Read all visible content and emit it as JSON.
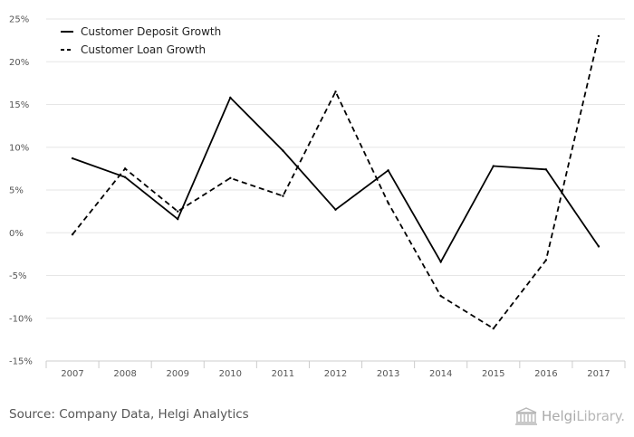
{
  "chart_data": {
    "type": "line",
    "title": "",
    "xlabel": "",
    "ylabel": "",
    "categories": [
      "2007",
      "2008",
      "2009",
      "2010",
      "2011",
      "2012",
      "2013",
      "2014",
      "2015",
      "2016",
      "2017"
    ],
    "ylim": [
      -15,
      25
    ],
    "y_ticks": [
      25,
      20,
      15,
      10,
      5,
      0,
      -5,
      -10,
      -15
    ],
    "y_tick_labels": [
      "25%",
      "20%",
      "15%",
      "10%",
      "5%",
      "0%",
      "-5%",
      "-10%",
      "-15%"
    ],
    "grid": true,
    "legend_position": "top-left",
    "series": [
      {
        "name": "Customer Deposit Growth",
        "style": "solid",
        "color": "#000000",
        "values": [
          8.7,
          6.5,
          1.6,
          15.8,
          9.6,
          2.7,
          7.3,
          -3.4,
          7.8,
          7.4,
          -1.6
        ]
      },
      {
        "name": "Customer Loan Growth",
        "style": "dashed",
        "color": "#000000",
        "values": [
          -0.2,
          7.5,
          2.5,
          6.4,
          4.3,
          16.5,
          3.5,
          -7.4,
          -11.2,
          -3.2,
          23.0
        ]
      }
    ]
  },
  "footer": {
    "source": "Source: Company Data, Helgi Analytics",
    "logo_part1": "Helgi",
    "logo_part2": "Library."
  }
}
